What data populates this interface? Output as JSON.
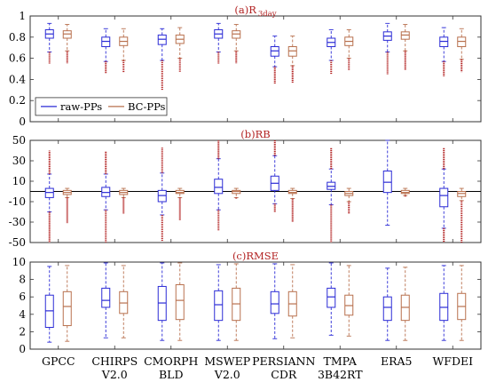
{
  "categories": [
    "GPCC",
    "CHIRPS V2.0",
    "CMORPH BLD",
    "MSWEP V2.0",
    "PERSIANN CDR",
    "TMPA 3B42RT",
    "ERA5",
    "WFDEI"
  ],
  "category_lines": [
    [
      "GPCC"
    ],
    [
      "CHIRPS",
      "V2.0"
    ],
    [
      "CMORPH",
      "BLD"
    ],
    [
      "MSWEP",
      "V2.0"
    ],
    [
      "PERSIANN",
      "CDR"
    ],
    [
      "TMPA",
      "3B42RT"
    ],
    [
      "ERA5"
    ],
    [
      "WFDEI"
    ]
  ],
  "colors": {
    "raw": "#2b2bd6",
    "bc": "#b8704e",
    "outlier": "#b22222",
    "title": "#b22222",
    "axis": "#333333"
  },
  "chart_data": [
    {
      "type": "box",
      "title": "(a)R",
      "title_sub": "3day",
      "ylim": [
        0,
        1
      ],
      "yticks": [
        0,
        0.2,
        0.4,
        0.6,
        0.8,
        1
      ],
      "ytick_labels": [
        "0",
        "0.2",
        "0.4",
        "0.6",
        "0.8",
        "1"
      ],
      "legend": {
        "position": "bottom-left",
        "entries": [
          "raw-PPs",
          "BC-PPs"
        ]
      },
      "series": [
        {
          "name": "raw-PPs",
          "boxes": [
            {
              "min": 0.66,
              "q1": 0.79,
              "median": 0.83,
              "q3": 0.87,
              "max": 0.93,
              "outlier_low": 0.55
            },
            {
              "min": 0.57,
              "q1": 0.71,
              "median": 0.76,
              "q3": 0.8,
              "max": 0.88,
              "outlier_low": 0.46
            },
            {
              "min": 0.58,
              "q1": 0.73,
              "median": 0.78,
              "q3": 0.82,
              "max": 0.88,
              "outlier_low": 0.3
            },
            {
              "min": 0.66,
              "q1": 0.79,
              "median": 0.83,
              "q3": 0.87,
              "max": 0.93,
              "outlier_low": 0.55
            },
            {
              "min": 0.52,
              "q1": 0.62,
              "median": 0.67,
              "q3": 0.71,
              "max": 0.81,
              "outlier_low": 0.36
            },
            {
              "min": 0.58,
              "q1": 0.71,
              "median": 0.75,
              "q3": 0.79,
              "max": 0.87,
              "outlier_low": 0.45
            },
            {
              "min": 0.66,
              "q1": 0.77,
              "median": 0.81,
              "q3": 0.85,
              "max": 0.93,
              "outlier_low": 0.45
            },
            {
              "min": 0.57,
              "q1": 0.71,
              "median": 0.76,
              "q3": 0.8,
              "max": 0.89,
              "outlier_low": 0.43
            }
          ]
        },
        {
          "name": "BC-PPs",
          "boxes": [
            {
              "min": 0.67,
              "q1": 0.79,
              "median": 0.83,
              "q3": 0.86,
              "max": 0.92,
              "outlier_low": 0.55
            },
            {
              "min": 0.58,
              "q1": 0.72,
              "median": 0.76,
              "q3": 0.8,
              "max": 0.88,
              "outlier_low": 0.47
            },
            {
              "min": 0.6,
              "q1": 0.74,
              "median": 0.78,
              "q3": 0.82,
              "max": 0.89,
              "outlier_low": 0.47
            },
            {
              "min": 0.67,
              "q1": 0.79,
              "median": 0.83,
              "q3": 0.86,
              "max": 0.92,
              "outlier_low": 0.55
            },
            {
              "min": 0.53,
              "q1": 0.62,
              "median": 0.67,
              "q3": 0.71,
              "max": 0.81,
              "outlier_low": 0.37
            },
            {
              "min": 0.6,
              "q1": 0.72,
              "median": 0.76,
              "q3": 0.8,
              "max": 0.87,
              "outlier_low": 0.49
            },
            {
              "min": 0.67,
              "q1": 0.78,
              "median": 0.82,
              "q3": 0.85,
              "max": 0.92,
              "outlier_low": 0.49
            },
            {
              "min": 0.59,
              "q1": 0.71,
              "median": 0.76,
              "q3": 0.8,
              "max": 0.88,
              "outlier_low": 0.47
            }
          ]
        }
      ]
    },
    {
      "type": "box",
      "title": "(b)RB",
      "ylim": [
        -50,
        50
      ],
      "yticks": [
        -50,
        -30,
        -10,
        10,
        30,
        50
      ],
      "ytick_labels": [
        "-50",
        "-30",
        "-10",
        "10",
        "30",
        "50"
      ],
      "reference_line": 0,
      "series": [
        {
          "name": "raw-PPs",
          "boxes": [
            {
              "min": -20,
              "q1": -6,
              "median": -1,
              "q3": 3,
              "max": 17,
              "outlier_low": -50,
              "outlier_high": 40
            },
            {
              "min": -18,
              "q1": -5,
              "median": -1,
              "q3": 4,
              "max": 17,
              "outlier_low": -50,
              "outlier_high": 39
            },
            {
              "min": -23,
              "q1": -10,
              "median": -4,
              "q3": 1,
              "max": 18,
              "outlier_low": -49,
              "outlier_high": 43
            },
            {
              "min": -18,
              "q1": -2,
              "median": 4,
              "q3": 12,
              "max": 32,
              "outlier_low": -38,
              "outlier_high": 50
            },
            {
              "min": -12,
              "q1": 1,
              "median": 8,
              "q3": 15,
              "max": 35,
              "outlier_low": -20,
              "outlier_high": 50
            },
            {
              "min": -13,
              "q1": 2,
              "median": 5,
              "q3": 9,
              "max": 22,
              "outlier_low": -50,
              "outlier_high": 43
            },
            {
              "min": -33,
              "q1": -1,
              "median": 9,
              "q3": 20,
              "max": 50
            },
            {
              "min": -36,
              "q1": -15,
              "median": -4,
              "q3": 3,
              "max": 22,
              "outlier_low": -50,
              "outlier_high": 43
            }
          ]
        },
        {
          "name": "BC-PPs",
          "boxes": [
            {
              "min": -6,
              "q1": -3,
              "median": -1,
              "q3": 1,
              "max": 3,
              "outlier_low": -31,
              "outlier_high": 2
            },
            {
              "min": -6,
              "q1": -3,
              "median": -1,
              "q3": 1,
              "max": 3,
              "outlier_low": -22,
              "outlier_high": 3
            },
            {
              "min": -6,
              "q1": -2,
              "median": -1,
              "q3": 1,
              "max": 3,
              "outlier_low": -28,
              "outlier_high": 3
            },
            {
              "min": -6,
              "q1": -2,
              "median": 0,
              "q3": 1,
              "max": 3,
              "outlier_low": -7,
              "outlier_high": 3
            },
            {
              "min": -7,
              "q1": -2,
              "median": -1,
              "q3": 1,
              "max": 3,
              "outlier_low": -30,
              "outlier_high": 3
            },
            {
              "min": -10,
              "q1": -4,
              "median": -2,
              "q3": 0,
              "max": 3,
              "outlier_low": -22,
              "outlier_high": 3
            },
            {
              "min": -4,
              "q1": -2,
              "median": -1,
              "q3": 1,
              "max": 3,
              "outlier_low": -5,
              "outlier_high": 3
            },
            {
              "min": -9,
              "q1": -5,
              "median": -2,
              "q3": 0,
              "max": 3,
              "outlier_low": -50,
              "outlier_high": 3
            }
          ]
        }
      ]
    },
    {
      "type": "box",
      "title": "(c)RMSE",
      "ylim": [
        0,
        10
      ],
      "yticks": [
        0,
        2,
        4,
        6,
        8,
        10
      ],
      "ytick_labels": [
        "0",
        "2",
        "4",
        "6",
        "8",
        "10"
      ],
      "series": [
        {
          "name": "raw-PPs",
          "boxes": [
            {
              "min": 0.8,
              "q1": 2.5,
              "median": 4.4,
              "q3": 6.2,
              "max": 9.5
            },
            {
              "min": 1.3,
              "q1": 4.8,
              "median": 5.6,
              "q3": 7.0,
              "max": 9.9
            },
            {
              "min": 1.0,
              "q1": 3.3,
              "median": 5.3,
              "q3": 7.2,
              "max": 9.9
            },
            {
              "min": 1.0,
              "q1": 3.3,
              "median": 5.1,
              "q3": 6.7,
              "max": 9.7
            },
            {
              "min": 1.2,
              "q1": 4.1,
              "median": 5.2,
              "q3": 6.6,
              "max": 9.8
            },
            {
              "min": 1.6,
              "q1": 4.8,
              "median": 6.0,
              "q3": 7.0,
              "max": 9.9
            },
            {
              "min": 1.0,
              "q1": 3.3,
              "median": 4.8,
              "q3": 6.0,
              "max": 9.3
            },
            {
              "min": 1.0,
              "q1": 3.3,
              "median": 4.8,
              "q3": 6.4,
              "max": 9.6
            }
          ]
        },
        {
          "name": "BC-PPs",
          "boxes": [
            {
              "min": 0.9,
              "q1": 2.7,
              "median": 4.9,
              "q3": 6.6,
              "max": 9.6
            },
            {
              "min": 1.3,
              "q1": 4.1,
              "median": 5.3,
              "q3": 6.6,
              "max": 9.6
            },
            {
              "min": 1.0,
              "q1": 3.4,
              "median": 5.6,
              "q3": 7.4,
              "max": 9.9
            },
            {
              "min": 1.0,
              "q1": 3.3,
              "median": 5.2,
              "q3": 7.0,
              "max": 9.8
            },
            {
              "min": 1.3,
              "q1": 3.8,
              "median": 5.2,
              "q3": 6.6,
              "max": 9.7
            },
            {
              "min": 1.5,
              "q1": 3.9,
              "median": 5.0,
              "q3": 6.2,
              "max": 9.6
            },
            {
              "min": 1.0,
              "q1": 3.3,
              "median": 4.8,
              "q3": 6.2,
              "max": 9.4
            },
            {
              "min": 1.0,
              "q1": 3.4,
              "median": 4.9,
              "q3": 6.4,
              "max": 9.6
            }
          ]
        }
      ]
    }
  ]
}
